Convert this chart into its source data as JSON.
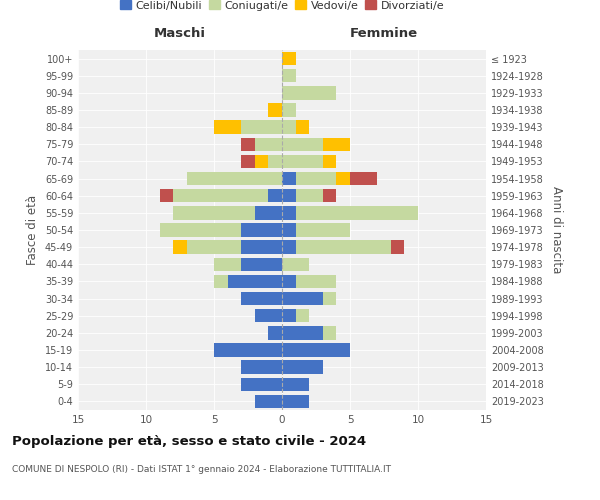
{
  "age_groups": [
    "0-4",
    "5-9",
    "10-14",
    "15-19",
    "20-24",
    "25-29",
    "30-34",
    "35-39",
    "40-44",
    "45-49",
    "50-54",
    "55-59",
    "60-64",
    "65-69",
    "70-74",
    "75-79",
    "80-84",
    "85-89",
    "90-94",
    "95-99",
    "100+"
  ],
  "birth_years": [
    "2019-2023",
    "2014-2018",
    "2009-2013",
    "2004-2008",
    "1999-2003",
    "1994-1998",
    "1989-1993",
    "1984-1988",
    "1979-1983",
    "1974-1978",
    "1969-1973",
    "1964-1968",
    "1959-1963",
    "1954-1958",
    "1949-1953",
    "1944-1948",
    "1939-1943",
    "1934-1938",
    "1929-1933",
    "1924-1928",
    "≤ 1923"
  ],
  "male": {
    "celibi": [
      2,
      3,
      3,
      5,
      1,
      2,
      3,
      4,
      3,
      3,
      3,
      2,
      1,
      0,
      0,
      0,
      0,
      0,
      0,
      0,
      0
    ],
    "coniugati": [
      0,
      0,
      0,
      0,
      0,
      0,
      0,
      1,
      2,
      4,
      6,
      6,
      7,
      7,
      1,
      2,
      3,
      0,
      0,
      0,
      0
    ],
    "vedovi": [
      0,
      0,
      0,
      0,
      0,
      0,
      0,
      0,
      0,
      1,
      0,
      0,
      0,
      0,
      1,
      0,
      2,
      1,
      0,
      0,
      0
    ],
    "divorziati": [
      0,
      0,
      0,
      0,
      0,
      0,
      0,
      0,
      0,
      0,
      0,
      0,
      1,
      0,
      1,
      1,
      0,
      0,
      0,
      0,
      0
    ]
  },
  "female": {
    "nubili": [
      2,
      2,
      3,
      5,
      3,
      1,
      3,
      1,
      0,
      1,
      1,
      1,
      1,
      1,
      0,
      0,
      0,
      0,
      0,
      0,
      0
    ],
    "coniugate": [
      0,
      0,
      0,
      0,
      1,
      1,
      1,
      3,
      2,
      7,
      4,
      9,
      2,
      3,
      3,
      3,
      1,
      1,
      4,
      1,
      0
    ],
    "vedove": [
      0,
      0,
      0,
      0,
      0,
      0,
      0,
      0,
      0,
      0,
      0,
      0,
      0,
      1,
      1,
      2,
      1,
      0,
      0,
      0,
      1
    ],
    "divorziate": [
      0,
      0,
      0,
      0,
      0,
      0,
      0,
      0,
      0,
      1,
      0,
      0,
      1,
      2,
      0,
      0,
      0,
      0,
      0,
      0,
      0
    ]
  },
  "colors": {
    "celibi_nubili": "#4472c4",
    "coniugati": "#c5d9a0",
    "vedovi": "#ffc000",
    "divorziati": "#c0504d"
  },
  "xlim": 15,
  "title": "Popolazione per età, sesso e stato civile - 2024",
  "subtitle": "COMUNE DI NESPOLO (RI) - Dati ISTAT 1° gennaio 2024 - Elaborazione TUTTITALIA.IT",
  "ylabel_left": "Fasce di età",
  "ylabel_right": "Anni di nascita",
  "xlabel_left": "Maschi",
  "xlabel_right": "Femmine",
  "legend_labels": [
    "Celibi/Nubili",
    "Coniugati/e",
    "Vedovi/e",
    "Divorziati/e"
  ],
  "bg_color": "#f0f0f0"
}
